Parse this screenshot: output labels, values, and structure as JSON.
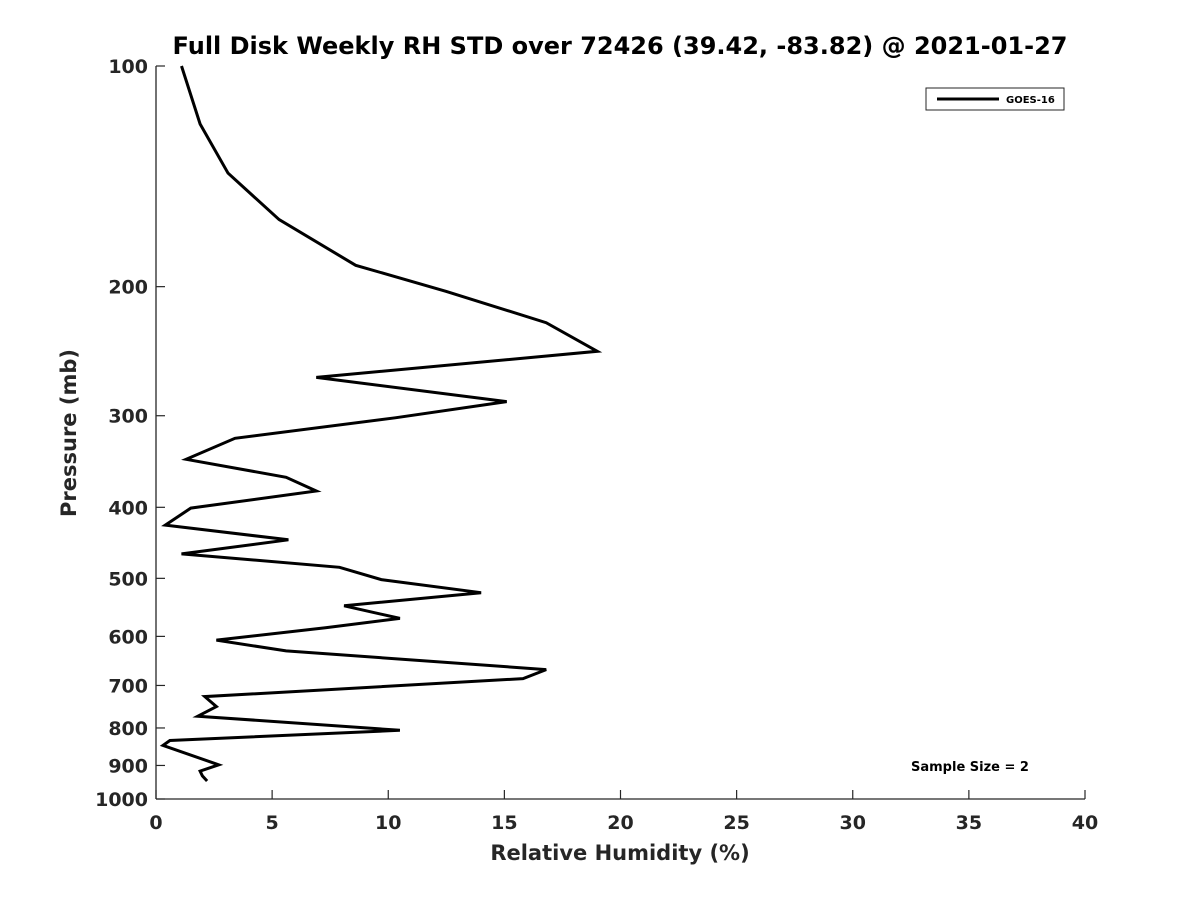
{
  "chart_data": {
    "type": "line",
    "title": "Full Disk Weekly RH STD over 72426 (39.42, -83.82) @ 2021-01-27",
    "xlabel": "Relative Humidity (%)",
    "ylabel": "Pressure (mb)",
    "xlim": [
      0,
      40
    ],
    "ylim": [
      100,
      1000
    ],
    "yscale": "log",
    "y_reversed": true,
    "grid": false,
    "legend_position": "top-right",
    "x_ticks": [
      0,
      5,
      10,
      15,
      20,
      25,
      30,
      35,
      40
    ],
    "x_tick_labels": [
      "0",
      "5",
      "10",
      "15",
      "20",
      "25",
      "30",
      "35",
      "40"
    ],
    "y_ticks": [
      100,
      200,
      300,
      400,
      500,
      600,
      700,
      800,
      900,
      1000
    ],
    "y_tick_labels": [
      "100",
      "200",
      "300",
      "400",
      "500",
      "600",
      "700",
      "800",
      "900",
      "1000"
    ],
    "annotation": "Sample Size = 2",
    "series": [
      {
        "name": "GOES-16",
        "color": "#000000",
        "points": [
          {
            "x": 1.1,
            "p": 100
          },
          {
            "x": 1.9,
            "p": 120
          },
          {
            "x": 3.1,
            "p": 140
          },
          {
            "x": 5.3,
            "p": 162
          },
          {
            "x": 8.6,
            "p": 187
          },
          {
            "x": 12.5,
            "p": 203
          },
          {
            "x": 16.8,
            "p": 224
          },
          {
            "x": 19.0,
            "p": 245
          },
          {
            "x": 6.9,
            "p": 266
          },
          {
            "x": 15.1,
            "p": 287
          },
          {
            "x": 10.3,
            "p": 302
          },
          {
            "x": 3.4,
            "p": 322
          },
          {
            "x": 1.3,
            "p": 344
          },
          {
            "x": 5.6,
            "p": 364
          },
          {
            "x": 6.9,
            "p": 380
          },
          {
            "x": 1.5,
            "p": 401
          },
          {
            "x": 0.4,
            "p": 423
          },
          {
            "x": 5.7,
            "p": 443
          },
          {
            "x": 1.1,
            "p": 463
          },
          {
            "x": 7.9,
            "p": 483
          },
          {
            "x": 9.7,
            "p": 502
          },
          {
            "x": 14.0,
            "p": 523
          },
          {
            "x": 8.1,
            "p": 545
          },
          {
            "x": 10.5,
            "p": 567
          },
          {
            "x": 7.3,
            "p": 584
          },
          {
            "x": 2.6,
            "p": 607
          },
          {
            "x": 5.6,
            "p": 628
          },
          {
            "x": 16.8,
            "p": 666
          },
          {
            "x": 15.8,
            "p": 685
          },
          {
            "x": 2.1,
            "p": 725
          },
          {
            "x": 2.6,
            "p": 748
          },
          {
            "x": 1.8,
            "p": 771
          },
          {
            "x": 10.5,
            "p": 806
          },
          {
            "x": 0.6,
            "p": 832
          },
          {
            "x": 0.3,
            "p": 845
          },
          {
            "x": 2.7,
            "p": 898
          },
          {
            "x": 1.9,
            "p": 916
          },
          {
            "x": 2.0,
            "p": 930
          },
          {
            "x": 2.2,
            "p": 945
          }
        ]
      }
    ]
  }
}
